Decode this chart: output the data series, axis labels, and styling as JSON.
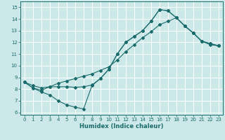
{
  "xlabel": "Humidex (Indice chaleur)",
  "bg_color": "#cce8e8",
  "grid_color": "#ffffff",
  "line_color": "#1a6b6b",
  "xlim": [
    -0.5,
    23.5
  ],
  "ylim": [
    5.8,
    15.5
  ],
  "yticks": [
    6,
    7,
    8,
    9,
    10,
    11,
    12,
    13,
    14,
    15
  ],
  "xticks": [
    0,
    1,
    2,
    3,
    4,
    5,
    6,
    7,
    8,
    9,
    10,
    11,
    12,
    13,
    14,
    15,
    16,
    17,
    18,
    19,
    20,
    21,
    22,
    23
  ],
  "line1_x": [
    0,
    1,
    2,
    3,
    4,
    5,
    6,
    7,
    8,
    9,
    10,
    11,
    12,
    13,
    14,
    15,
    16,
    17,
    18,
    19,
    20,
    21,
    22,
    23
  ],
  "line1_y": [
    8.6,
    8.1,
    7.75,
    7.5,
    7.0,
    6.65,
    6.45,
    6.3,
    8.3,
    8.9,
    9.7,
    11.0,
    12.0,
    12.5,
    13.0,
    13.8,
    14.8,
    14.7,
    14.1,
    13.4,
    12.8,
    12.1,
    11.9,
    11.7
  ],
  "line2_x": [
    0,
    1,
    2,
    3,
    4,
    5,
    6,
    7,
    8,
    9,
    10,
    11,
    12,
    13,
    14,
    15,
    16,
    17,
    18,
    19,
    20,
    21,
    22,
    23
  ],
  "line2_y": [
    8.6,
    8.1,
    7.9,
    8.2,
    8.2,
    8.2,
    8.15,
    8.2,
    8.35,
    8.9,
    9.7,
    11.0,
    12.0,
    12.5,
    13.0,
    13.8,
    14.8,
    14.7,
    14.1,
    13.4,
    12.8,
    12.1,
    11.9,
    11.7
  ],
  "line3_x": [
    0,
    1,
    2,
    3,
    4,
    5,
    6,
    7,
    8,
    9,
    10,
    11,
    12,
    13,
    14,
    15,
    16,
    17,
    18,
    19,
    20,
    21,
    22,
    23
  ],
  "line3_y": [
    8.6,
    8.3,
    8.1,
    8.2,
    8.5,
    8.7,
    8.9,
    9.1,
    9.3,
    9.6,
    9.9,
    10.5,
    11.2,
    11.8,
    12.4,
    12.9,
    13.5,
    13.8,
    14.1,
    13.4,
    12.8,
    12.1,
    11.8,
    11.7
  ]
}
